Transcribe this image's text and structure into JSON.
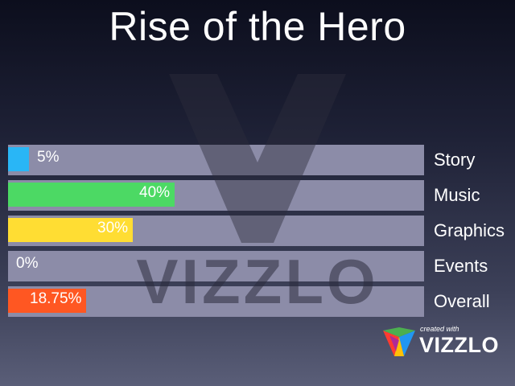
{
  "title": "Rise of the Hero",
  "watermark": {
    "text": "VIZZLO"
  },
  "brand": {
    "created_with": "created with",
    "name": "VIZZLO"
  },
  "chart_data": {
    "type": "bar",
    "orientation": "horizontal",
    "title": "Rise of the Hero",
    "xlim": [
      0,
      100
    ],
    "unit": "%",
    "grid": false,
    "legend": "none",
    "categories": [
      "Story",
      "Music",
      "Graphics",
      "Events",
      "Overall"
    ],
    "values": [
      5,
      40,
      30,
      0,
      18.75
    ],
    "labels": [
      "5%",
      "40%",
      "30%",
      "0%",
      "18.75%"
    ],
    "colors": [
      "#29b6f6",
      "#4cd964",
      "#ffdd33",
      "#888888",
      "#ff5722"
    ],
    "track_color": "#8c8ca8"
  }
}
